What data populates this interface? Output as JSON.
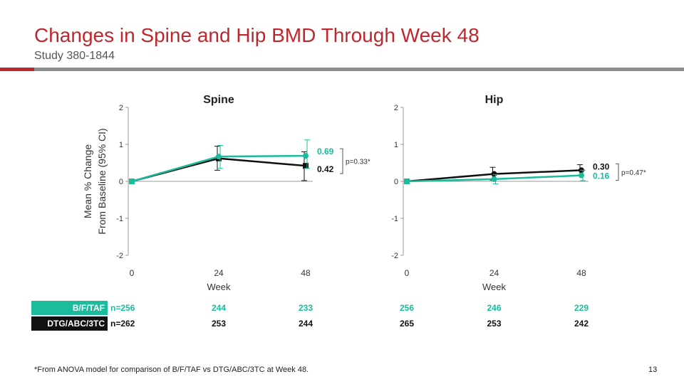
{
  "header": {
    "title": "Changes in Spine and Hip BMD Through Week 48",
    "subtitle": "Study 380-1844"
  },
  "colors": {
    "accent_red": "#c0272d",
    "bftaf": "#1abc9c",
    "dtg": "#111111",
    "divider_gray": "#8c8c8c"
  },
  "chart_data": [
    {
      "type": "line",
      "title": "Spine",
      "ylabel": "Mean % Change From Baseline (95% CI)",
      "xlabel": "Week",
      "x": [
        0,
        24,
        48
      ],
      "x_ticks": [
        "0",
        "24",
        "48"
      ],
      "y_ticks": [
        "2",
        "1",
        "0",
        "-1",
        "-2"
      ],
      "ylim": [
        -2,
        2
      ],
      "series": [
        {
          "name": "B/F/TAF",
          "values": [
            0,
            0.67,
            0.69
          ],
          "ci_low": [
            0,
            0.35,
            0.35
          ],
          "ci_high": [
            0,
            0.97,
            1.12
          ],
          "color": "#1abc9c"
        },
        {
          "name": "DTG/ABC/3TC",
          "values": [
            0,
            0.62,
            0.42
          ],
          "ci_low": [
            0,
            0.3,
            0.02
          ],
          "ci_high": [
            0,
            0.95,
            0.8
          ],
          "color": "#111111"
        }
      ],
      "end_labels": [
        "0.69",
        "0.42"
      ],
      "p_value": "p=0.33*",
      "n_at_risk": [
        {
          "group": "B/F/TAF",
          "values": [
            "n=256",
            "244",
            "233"
          ]
        },
        {
          "group": "DTG/ABC/3TC",
          "values": [
            "n=262",
            "253",
            "244"
          ]
        }
      ]
    },
    {
      "type": "line",
      "title": "Hip",
      "xlabel": "Week",
      "x": [
        0,
        24,
        48
      ],
      "x_ticks": [
        "0",
        "24",
        "48"
      ],
      "y_ticks": [
        "2",
        "1",
        "0",
        "-1",
        "-2"
      ],
      "ylim": [
        -2,
        2
      ],
      "series": [
        {
          "name": "B/F/TAF",
          "values": [
            0,
            0.06,
            0.16
          ],
          "ci_low": [
            0,
            -0.07,
            0.02
          ],
          "ci_high": [
            0,
            0.18,
            0.3
          ],
          "color": "#1abc9c"
        },
        {
          "name": "DTG/ABC/3TC",
          "values": [
            0,
            0.2,
            0.3
          ],
          "ci_low": [
            0,
            0.03,
            0.15
          ],
          "ci_high": [
            0,
            0.38,
            0.45
          ],
          "color": "#111111"
        }
      ],
      "end_labels": [
        "0.30",
        "0.16"
      ],
      "p_value": "p=0.47*",
      "n_at_risk": [
        {
          "group": "B/F/TAF",
          "values": [
            "256",
            "246",
            "229"
          ]
        },
        {
          "group": "DTG/ABC/3TC",
          "values": [
            "265",
            "253",
            "242"
          ]
        }
      ]
    }
  ],
  "legend": {
    "bftaf_label": "B/F/TAF",
    "dtg_label": "DTG/ABC/3TC"
  },
  "footnote": "*From ANOVA model for comparison of B/F/TAF vs DTG/ABC/3TC at Week 48.",
  "page_number": "13"
}
